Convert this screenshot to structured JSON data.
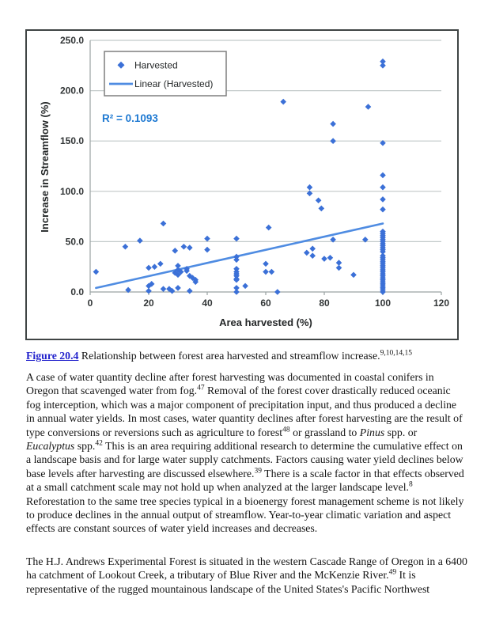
{
  "chart_data": {
    "type": "scatter",
    "title": "",
    "xlabel": "Area harvested (%)",
    "ylabel": "Increase in Streamflow (%)",
    "xlim": [
      0,
      120
    ],
    "ylim": [
      0,
      250
    ],
    "xticks": [
      0,
      20,
      40,
      60,
      80,
      100,
      120
    ],
    "ytick_values": [
      0,
      50,
      100,
      150,
      200,
      250
    ],
    "ytick_labels": [
      "0.0",
      "50.0",
      "100.0",
      "150.0",
      "200.0",
      "250.0"
    ],
    "grid": "horizontal",
    "annotation": "R² = 0.1093",
    "legend": {
      "position": "top-left-inside",
      "entries": [
        {
          "label": "Harvested",
          "marker": "diamond"
        },
        {
          "label": "Linear (Harvested)",
          "marker": "line"
        }
      ]
    },
    "series": [
      {
        "name": "Harvested",
        "type": "scatter",
        "marker": "diamond",
        "color": "#3b70d7",
        "points": [
          [
            2,
            20
          ],
          [
            12,
            45
          ],
          [
            13,
            2
          ],
          [
            17,
            51
          ],
          [
            20,
            24
          ],
          [
            20,
            6
          ],
          [
            20,
            1
          ],
          [
            21,
            8
          ],
          [
            22,
            25
          ],
          [
            24,
            28
          ],
          [
            25,
            68
          ],
          [
            25,
            3
          ],
          [
            27,
            3
          ],
          [
            28,
            1
          ],
          [
            29,
            41
          ],
          [
            29,
            19
          ],
          [
            30,
            26
          ],
          [
            30,
            22
          ],
          [
            30,
            17
          ],
          [
            31,
            20
          ],
          [
            30,
            4
          ],
          [
            32,
            45
          ],
          [
            33,
            23
          ],
          [
            33,
            21
          ],
          [
            34,
            44
          ],
          [
            34,
            16
          ],
          [
            34,
            1
          ],
          [
            35,
            14
          ],
          [
            36,
            12
          ],
          [
            36,
            10
          ],
          [
            40,
            53
          ],
          [
            40,
            42
          ],
          [
            50,
            53
          ],
          [
            50,
            35
          ],
          [
            50,
            32
          ],
          [
            50,
            23
          ],
          [
            50,
            20
          ],
          [
            50,
            18
          ],
          [
            50,
            16
          ],
          [
            50,
            13
          ],
          [
            50,
            12
          ],
          [
            50,
            4
          ],
          [
            50,
            0
          ],
          [
            53,
            6
          ],
          [
            60,
            28
          ],
          [
            60,
            20
          ],
          [
            61,
            64
          ],
          [
            62,
            20
          ],
          [
            64,
            0
          ],
          [
            66,
            189
          ],
          [
            74,
            39
          ],
          [
            75,
            104
          ],
          [
            75,
            98
          ],
          [
            76,
            43
          ],
          [
            76,
            36
          ],
          [
            78,
            91
          ],
          [
            79,
            83
          ],
          [
            80,
            33
          ],
          [
            82,
            34
          ],
          [
            83,
            167
          ],
          [
            83,
            150
          ],
          [
            83,
            52
          ],
          [
            85,
            29
          ],
          [
            85,
            24
          ],
          [
            90,
            17
          ],
          [
            94,
            52
          ],
          [
            95,
            184
          ],
          [
            100,
            229
          ],
          [
            100,
            225
          ],
          [
            100,
            148
          ],
          [
            100,
            116
          ],
          [
            100,
            104
          ],
          [
            100,
            92
          ],
          [
            100,
            82
          ],
          [
            100,
            60
          ],
          [
            100,
            58
          ],
          [
            100,
            56
          ],
          [
            100,
            54
          ],
          [
            100,
            52
          ],
          [
            100,
            50
          ],
          [
            100,
            48
          ],
          [
            100,
            46
          ],
          [
            100,
            44
          ],
          [
            100,
            42
          ],
          [
            100,
            40
          ],
          [
            100,
            36
          ],
          [
            100,
            34
          ],
          [
            100,
            32
          ],
          [
            100,
            30
          ],
          [
            100,
            28
          ],
          [
            100,
            26
          ],
          [
            100,
            24
          ],
          [
            100,
            22
          ],
          [
            100,
            20
          ],
          [
            100,
            18
          ],
          [
            100,
            16
          ],
          [
            100,
            14
          ],
          [
            100,
            12
          ],
          [
            100,
            10
          ],
          [
            100,
            8
          ],
          [
            100,
            6
          ],
          [
            100,
            4
          ],
          [
            100,
            2
          ],
          [
            100,
            0
          ]
        ]
      },
      {
        "name": "Linear (Harvested)",
        "type": "line",
        "color": "#4f8ce2",
        "points": [
          [
            2,
            4
          ],
          [
            100,
            68
          ]
        ]
      }
    ]
  },
  "figure_caption": {
    "link": "Figure 20.4",
    "text": " Relationship between forest area harvested and streamflow increase.",
    "refs": "9,10,14,15"
  },
  "paragraphs": {
    "p1": [
      {
        "t": "A case of water quantity decline after forest harvesting was documented in coastal conifers in Oregon that scavenged water from fog."
      },
      {
        "t": "47",
        "s": "sup"
      },
      {
        "t": " Removal of the forest cover drastically reduced oceanic fog interception, which was a major component of precipitation input, and thus produced a decline in annual water yields. In most cases, water quantity declines after forest harvesting are the result of type conversions or reversions such as agriculture to forest"
      },
      {
        "t": "48",
        "s": "sup"
      },
      {
        "t": " or grassland to "
      },
      {
        "t": "Pinus",
        "s": "i"
      },
      {
        "t": " spp. or "
      },
      {
        "t": "Eucalyptus",
        "s": "i"
      },
      {
        "t": " spp."
      },
      {
        "t": "42",
        "s": "sup"
      },
      {
        "t": " This is an area requiring additional research to determine the cumulative effect on a landscape basis and for large water supply catchments. Factors causing water yield declines below base levels after harvesting are discussed elsewhere."
      },
      {
        "t": "39",
        "s": "sup"
      },
      {
        "t": " There is a scale factor in that effects observed at a small catchment scale may not hold up when analyzed at the larger landscape level."
      },
      {
        "t": "8",
        "s": "sup"
      },
      {
        "t": " Reforestation to the same tree species typical in a bioenergy forest management scheme is not likely to produce declines in the annual output of streamflow. Year-to-year climatic variation and aspect effects are constant sources of water yield increases and decreases."
      }
    ],
    "p2": [
      {
        "t": "The H.J. Andrews Experimental Forest is situated in the western Cascade Range of Oregon in a 6400 ha catchment of Lookout Creek, a tributary of Blue River and the McKenzie River."
      },
      {
        "t": "49",
        "s": "sup"
      },
      {
        "t": " It is representative of the rugged mountainous landscape of the United States's Pacific Northwest"
      }
    ]
  },
  "colors": {
    "marker_blue": "#3b70d7",
    "trend_blue": "#4f8ce2",
    "r2_blue": "#1e79d2",
    "link_blue": "#2222cc",
    "gridline": "#c2c9c9",
    "axis": "#9aa2a2",
    "figure_border": "#3f4444"
  }
}
